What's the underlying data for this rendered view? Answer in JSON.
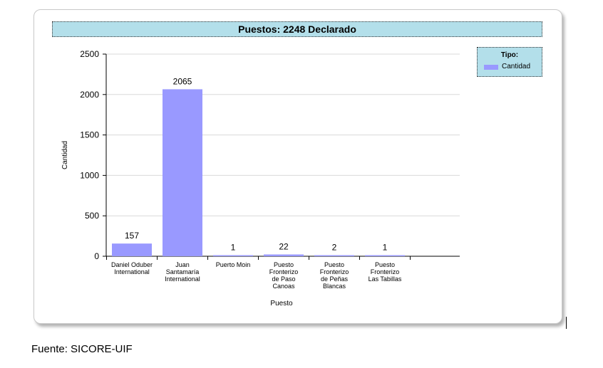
{
  "chart_data": {
    "type": "bar",
    "title": "Puestos: 2248 Declarado",
    "xlabel": "Puesto",
    "ylabel": "Cantidad",
    "ylim": [
      0,
      2500
    ],
    "yticks": [
      0,
      500,
      1000,
      1500,
      2000,
      2500
    ],
    "grid": true,
    "legend_position": "top-right",
    "legend_title": "Tipo:",
    "categories": [
      [
        "Daniel Oduber",
        "International"
      ],
      [
        "Juan",
        "Santamaría",
        "International"
      ],
      [
        "Puerto Moin"
      ],
      [
        "Puesto",
        "Fronterizo",
        "de Paso",
        "Canoas"
      ],
      [
        "Puesto",
        "Fronterizo",
        "de Peñas",
        "Blancas"
      ],
      [
        "Puesto",
        "Fronterizo",
        "Las Tabillas"
      ]
    ],
    "series": [
      {
        "name": "Cantidad",
        "values": [
          157,
          2065,
          1,
          22,
          2,
          1
        ],
        "color": "#9999ff"
      }
    ]
  },
  "source_note": "Fuente: SICORE-UIF"
}
